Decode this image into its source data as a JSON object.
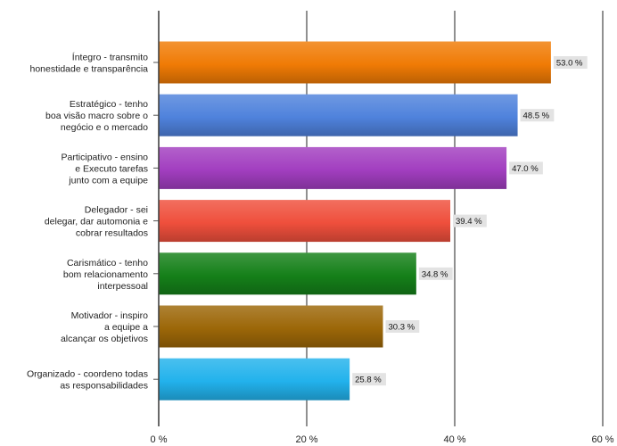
{
  "chart_data": {
    "type": "bar",
    "orientation": "horizontal",
    "categories": [
      [
        "Íntegro - transmito",
        "honestidade e transparência"
      ],
      [
        "Estratégico - tenho",
        "boa visão macro sobre o",
        "negócio e o mercado"
      ],
      [
        "Participativo - ensino",
        "e Executo tarefas",
        "junto com a equipe"
      ],
      [
        "Delegador - sei",
        "delegar, dar automonia e",
        "cobrar resultados"
      ],
      [
        "Carismático - tenho",
        "bom relacionamento",
        "interpessoal"
      ],
      [
        "Motivador - inspiro",
        "a equipe a",
        "alcançar os objetivos"
      ],
      [
        "Organizado - coordeno todas",
        "as responsabilidades"
      ]
    ],
    "values": [
      53.0,
      48.5,
      47.0,
      39.4,
      34.8,
      30.3,
      25.8
    ],
    "value_labels": [
      "53.0 %",
      "48.5 %",
      "47.0 %",
      "39.4 %",
      "34.8 %",
      "30.3 %",
      "25.8 %"
    ],
    "bar_colors": [
      "#f07b05",
      "#4f82dc",
      "#a23ec0",
      "#ef4f3c",
      "#158019",
      "#9c6708",
      "#22b2ec"
    ],
    "xlim": [
      0,
      60
    ],
    "x_ticks": [
      0,
      20,
      40,
      60
    ],
    "x_tick_labels": [
      "0 %",
      "20 %",
      "40 %",
      "60 %"
    ],
    "grid": "vertical",
    "title": "",
    "xlabel": "",
    "ylabel": ""
  }
}
